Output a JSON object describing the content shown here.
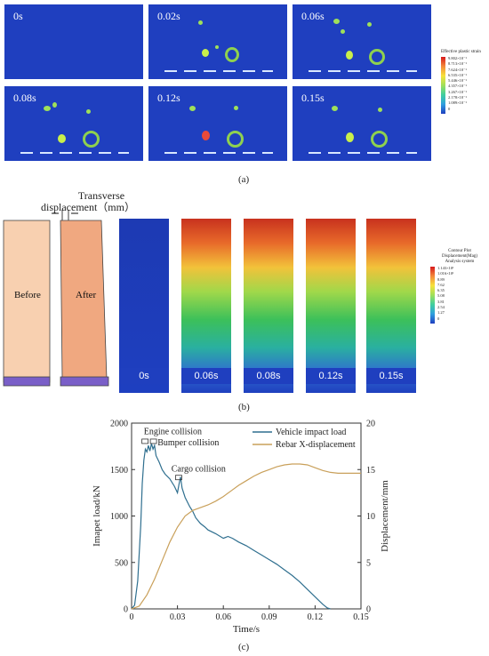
{
  "panel_a": {
    "times": [
      "0s",
      "0.02s",
      "0.06s",
      "0.08s",
      "0.12s",
      "0.15s"
    ],
    "legend_title": "Effective plastic strain",
    "legend_values": [
      "9.802×10⁻¹",
      "8.713×10⁻¹",
      "7.624×10⁻¹",
      "6.535×10⁻¹",
      "5.446×10⁻¹",
      "4.357×10⁻¹",
      "3.267×10⁻¹",
      "2.178×10⁻¹",
      "1.089×10⁻¹",
      "0"
    ],
    "caption": "(a)"
  },
  "panel_b": {
    "transverse_label_1": "Transverse",
    "transverse_label_2": "displacement（mm）",
    "before": "Before",
    "after": "After",
    "times": [
      "0s",
      "0.06s",
      "0.08s",
      "0.12s",
      "0.15s"
    ],
    "legend_title_1": "Contour Plot",
    "legend_title_2": "Displacement(Mag)",
    "legend_title_3": "Analysis system",
    "legend_values": [
      "1.143×10¹",
      "1.016×10¹",
      "8.89",
      "7.62",
      "6.35",
      "5.08",
      "3.81",
      "2.54",
      "1.27",
      "0"
    ],
    "caption": "(b)"
  },
  "panel_c": {
    "caption": "(c)"
  },
  "chart_data": {
    "type": "line",
    "xlabel": "Time/s",
    "ylabel": "Imapet load/kN",
    "ylabel_right": "Displacement/mm",
    "xlim": [
      0,
      0.15
    ],
    "ylim": [
      0,
      2000
    ],
    "ylim_right": [
      0,
      20
    ],
    "x_ticks": [
      "0",
      "0.03",
      "0.06",
      "0.09",
      "0.12",
      "0.15"
    ],
    "y_ticks": [
      "0",
      "500",
      "1000",
      "1500",
      "2000"
    ],
    "y_ticks_right": [
      "0",
      "5",
      "10",
      "15",
      "20"
    ],
    "legend_position": "top-right",
    "series": [
      {
        "name": "Vehicle impact load",
        "color": "#2f6f8f",
        "axis": "left",
        "points": [
          [
            0,
            0
          ],
          [
            0.002,
            40
          ],
          [
            0.004,
            300
          ],
          [
            0.006,
            900
          ],
          [
            0.007,
            1350
          ],
          [
            0.008,
            1600
          ],
          [
            0.009,
            1720
          ],
          [
            0.01,
            1690
          ],
          [
            0.011,
            1760
          ],
          [
            0.012,
            1700
          ],
          [
            0.013,
            1780
          ],
          [
            0.014,
            1720
          ],
          [
            0.015,
            1760
          ],
          [
            0.016,
            1650
          ],
          [
            0.018,
            1580
          ],
          [
            0.02,
            1500
          ],
          [
            0.022,
            1450
          ],
          [
            0.025,
            1400
          ],
          [
            0.028,
            1320
          ],
          [
            0.03,
            1250
          ],
          [
            0.031,
            1340
          ],
          [
            0.032,
            1420
          ],
          [
            0.033,
            1300
          ],
          [
            0.035,
            1200
          ],
          [
            0.038,
            1100
          ],
          [
            0.04,
            1050
          ],
          [
            0.042,
            980
          ],
          [
            0.045,
            920
          ],
          [
            0.048,
            880
          ],
          [
            0.05,
            850
          ],
          [
            0.055,
            810
          ],
          [
            0.06,
            760
          ],
          [
            0.063,
            780
          ],
          [
            0.066,
            760
          ],
          [
            0.07,
            720
          ],
          [
            0.075,
            680
          ],
          [
            0.08,
            630
          ],
          [
            0.085,
            580
          ],
          [
            0.09,
            530
          ],
          [
            0.095,
            480
          ],
          [
            0.1,
            420
          ],
          [
            0.105,
            360
          ],
          [
            0.11,
            290
          ],
          [
            0.115,
            210
          ],
          [
            0.12,
            130
          ],
          [
            0.125,
            50
          ],
          [
            0.128,
            10
          ],
          [
            0.13,
            0
          ]
        ]
      },
      {
        "name": "Rebar X-displacement",
        "color": "#c9a05a",
        "axis": "right",
        "points": [
          [
            0,
            0
          ],
          [
            0.005,
            0.3
          ],
          [
            0.01,
            1.5
          ],
          [
            0.015,
            3.2
          ],
          [
            0.02,
            5.2
          ],
          [
            0.025,
            7.2
          ],
          [
            0.03,
            8.8
          ],
          [
            0.035,
            10.0
          ],
          [
            0.04,
            10.6
          ],
          [
            0.045,
            10.9
          ],
          [
            0.05,
            11.2
          ],
          [
            0.055,
            11.6
          ],
          [
            0.06,
            12.1
          ],
          [
            0.065,
            12.7
          ],
          [
            0.07,
            13.3
          ],
          [
            0.075,
            13.8
          ],
          [
            0.08,
            14.3
          ],
          [
            0.085,
            14.7
          ],
          [
            0.09,
            15.0
          ],
          [
            0.095,
            15.3
          ],
          [
            0.1,
            15.5
          ],
          [
            0.105,
            15.6
          ],
          [
            0.11,
            15.6
          ],
          [
            0.115,
            15.5
          ],
          [
            0.12,
            15.2
          ],
          [
            0.125,
            14.9
          ],
          [
            0.13,
            14.7
          ],
          [
            0.135,
            14.6
          ],
          [
            0.14,
            14.6
          ],
          [
            0.15,
            14.6
          ]
        ]
      }
    ],
    "annotations": [
      {
        "text": "Engine collision",
        "x": 0.01,
        "y": 1780
      },
      {
        "text": "Bumper collision",
        "x": 0.015,
        "y": 1760
      },
      {
        "text": "Cargo collision",
        "x": 0.032,
        "y": 1420
      }
    ]
  }
}
